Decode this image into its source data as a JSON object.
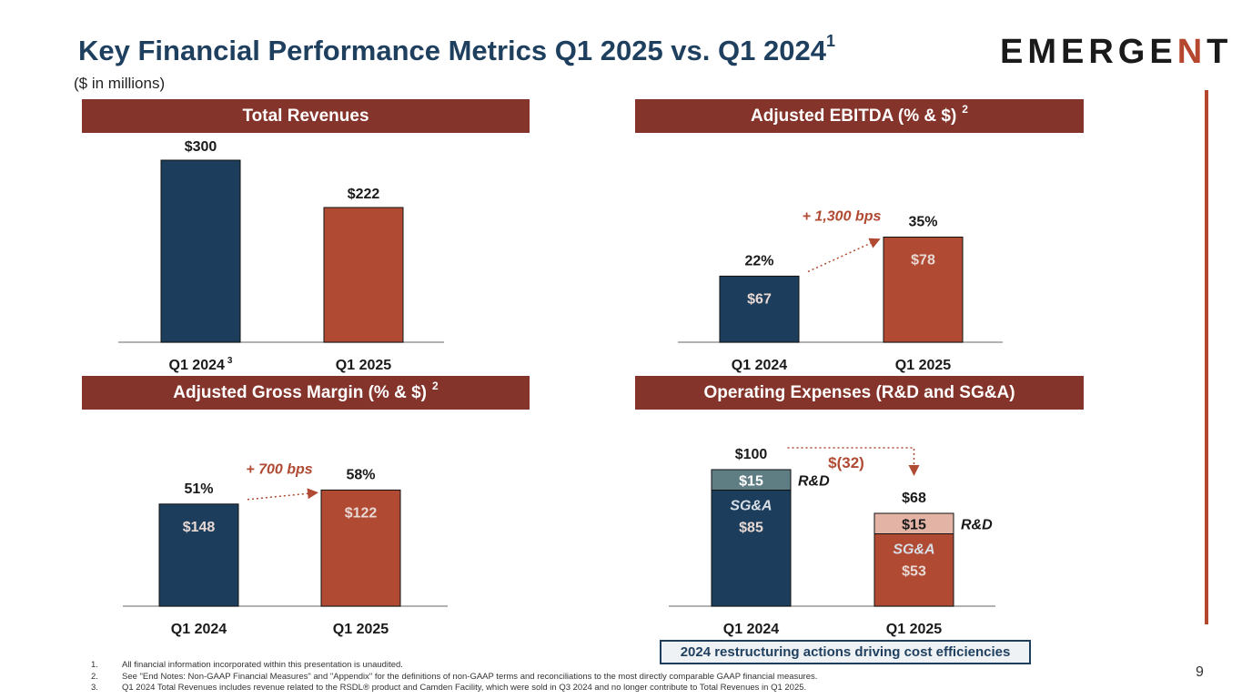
{
  "header": {
    "title": "Key Financial Performance Metrics Q1 2025 vs. Q1 2024",
    "title_sup": "1",
    "subtitle": "($ in millions)",
    "logo_main": "EMERGE",
    "logo_accent": "N",
    "logo_tail": "T"
  },
  "colors": {
    "navy": "#1c3d5b",
    "rust": "#b04a33",
    "banner": "#84342a",
    "teal_gray": "#5f7e84",
    "pink": "#e3b3a6"
  },
  "banners": {
    "revenues": "Total Revenues",
    "ebitda": "Adjusted EBITDA (% & $)",
    "ebitda_sup": "2",
    "gross_margin": "Adjusted Gross Margin  (% & $)",
    "gross_margin_sup": "2",
    "opex": "Operating Expenses (R&D and SG&A)"
  },
  "chart_data": [
    {
      "type": "bar",
      "title": "Total Revenues",
      "categories": [
        "Q1 2024",
        "Q1 2025"
      ],
      "category_sups": [
        "3",
        ""
      ],
      "values": [
        300,
        222
      ],
      "value_labels": [
        "$300",
        "$222"
      ],
      "ylim": [
        0,
        300
      ]
    },
    {
      "type": "bar",
      "title": "Adjusted EBITDA (% & $)",
      "categories": [
        "Q1 2024",
        "Q1 2025"
      ],
      "values": [
        67,
        78
      ],
      "value_labels": [
        "$67",
        "$78"
      ],
      "percent_labels": [
        "22%",
        "35%"
      ],
      "percents": [
        22,
        35
      ],
      "change_label": "+ 1,300 bps",
      "ylim": [
        0,
        40
      ]
    },
    {
      "type": "bar",
      "title": "Adjusted Gross Margin (% & $)",
      "categories": [
        "Q1 2024",
        "Q1 2025"
      ],
      "values": [
        148,
        122
      ],
      "value_labels": [
        "$148",
        "$122"
      ],
      "percent_labels": [
        "51%",
        "58%"
      ],
      "percents": [
        51,
        58
      ],
      "change_label": "+ 700 bps",
      "ylim": [
        0,
        80
      ]
    },
    {
      "type": "bar",
      "stacked": true,
      "title": "Operating Expenses (R&D and SG&A)",
      "categories": [
        "Q1 2024",
        "Q1 2025"
      ],
      "series": [
        {
          "name": "SG&A",
          "values": [
            85,
            53
          ],
          "value_labels": [
            "$85",
            "$53"
          ]
        },
        {
          "name": "R&D",
          "values": [
            15,
            15
          ],
          "value_labels": [
            "$15",
            "$15"
          ]
        }
      ],
      "totals": [
        100,
        68
      ],
      "total_labels": [
        "$100",
        "$68"
      ],
      "change_label": "$(32)",
      "ylim": [
        0,
        100
      ]
    }
  ],
  "callout": "2024 restructuring actions driving cost efficiencies",
  "footnotes": [
    {
      "num": "1.",
      "text": "All financial information incorporated within this presentation is unaudited."
    },
    {
      "num": "2.",
      "text": "See \"End Notes: Non-GAAP Financial Measures\" and \"Appendix\" for the definitions of non-GAAP terms and reconciliations to the most directly comparable GAAP financial measures."
    },
    {
      "num": "3.",
      "text": "Q1 2024 Total Revenues includes revenue related to the RSDL® product and Camden Facility, which were sold in Q3 2024 and no longer contribute to Total Revenues in Q1 2025."
    }
  ],
  "page_number": "9"
}
